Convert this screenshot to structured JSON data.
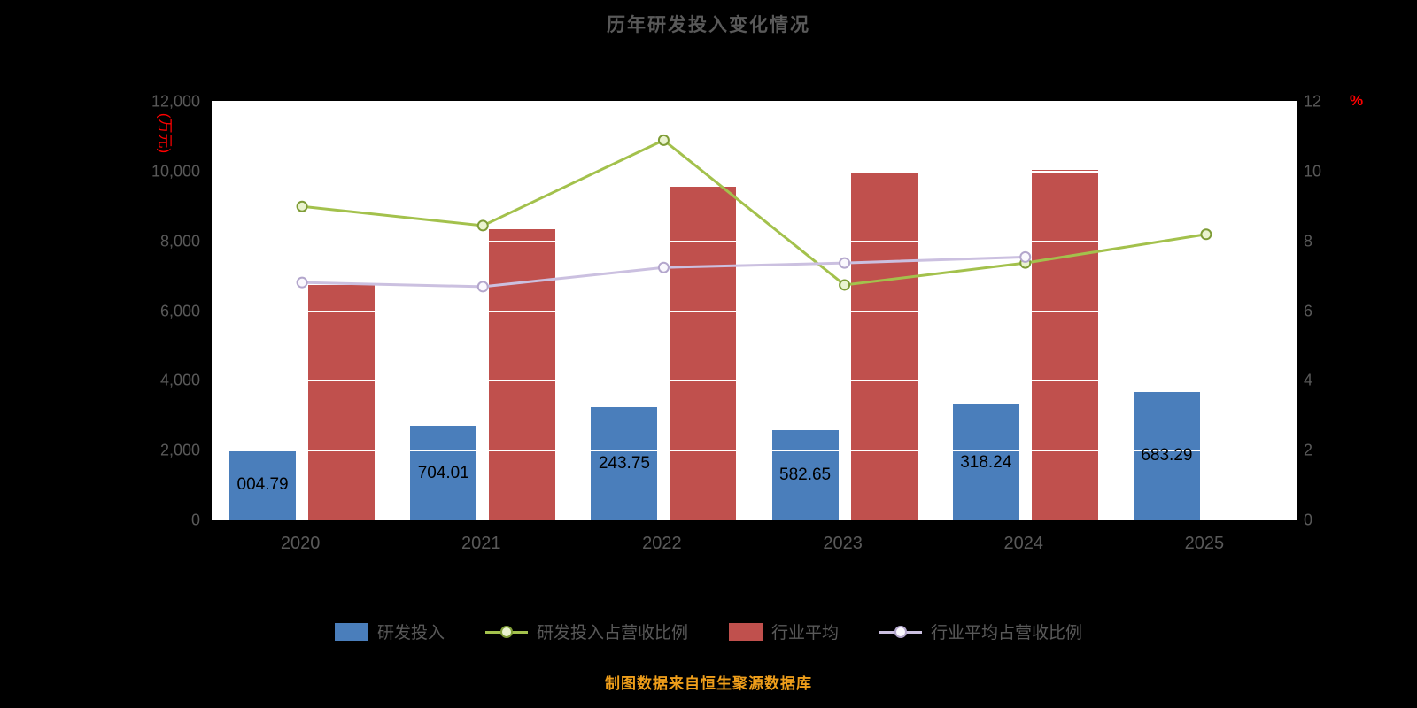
{
  "chart_data": {
    "type": "bar",
    "title": "历年研发投入变化情况",
    "footer": "制图数据来自恒生聚源数据库",
    "categories": [
      "2020",
      "2021",
      "2022",
      "2023",
      "2024",
      "2025"
    ],
    "left_axis": {
      "unit": "(万元)",
      "min": 0,
      "max": 12000,
      "tick_labels": [
        "0",
        "2,000",
        "4,000",
        "6,000",
        "8,000",
        "10,000",
        "12,000"
      ]
    },
    "right_axis": {
      "unit": "%",
      "min": 0,
      "max": 12,
      "tick_labels": [
        "0",
        "2",
        "4",
        "6",
        "8",
        "10",
        "12"
      ]
    },
    "series": [
      {
        "name": "研发投入",
        "type": "bar",
        "axis": "left",
        "color": "#4a7ebb",
        "values": [
          2004.79,
          2704.01,
          3243.75,
          2582.65,
          3318.24,
          3683.29
        ],
        "bar_labels_visible": [
          "004.79",
          "704.01",
          "243.75",
          "582.65",
          "318.24",
          "683.29"
        ]
      },
      {
        "name": "行业平均",
        "type": "bar",
        "axis": "left",
        "color": "#c0504d",
        "values": [
          6750,
          8350,
          9560,
          10000,
          10050,
          null
        ]
      },
      {
        "name": "研发投入占营收比例",
        "type": "line",
        "axis": "right",
        "color": "#a3c14c",
        "marker_fill": "#eaf3cf",
        "marker_stroke": "#7e9c36",
        "values": [
          9.0,
          8.45,
          10.9,
          6.75,
          7.38,
          8.2
        ]
      },
      {
        "name": "行业平均占营收比例",
        "type": "line",
        "axis": "right",
        "color": "#cbc0e0",
        "marker_fill": "#faf8fd",
        "marker_stroke": "#b3a6cc",
        "values": [
          6.82,
          6.7,
          7.25,
          7.38,
          7.55,
          null
        ]
      }
    ],
    "legend": [
      "研发投入",
      "研发投入占营收比例",
      "行业平均",
      "行业平均占营收比例"
    ],
    "legend_position": "bottom",
    "grid": true,
    "colors": {
      "background": "#000000",
      "plot_background": "#ffffff",
      "axis_text": "#595959",
      "unit_text": "#ff0000",
      "bar_label_text": "#000000",
      "footer_text": "#ef9e1a"
    }
  }
}
